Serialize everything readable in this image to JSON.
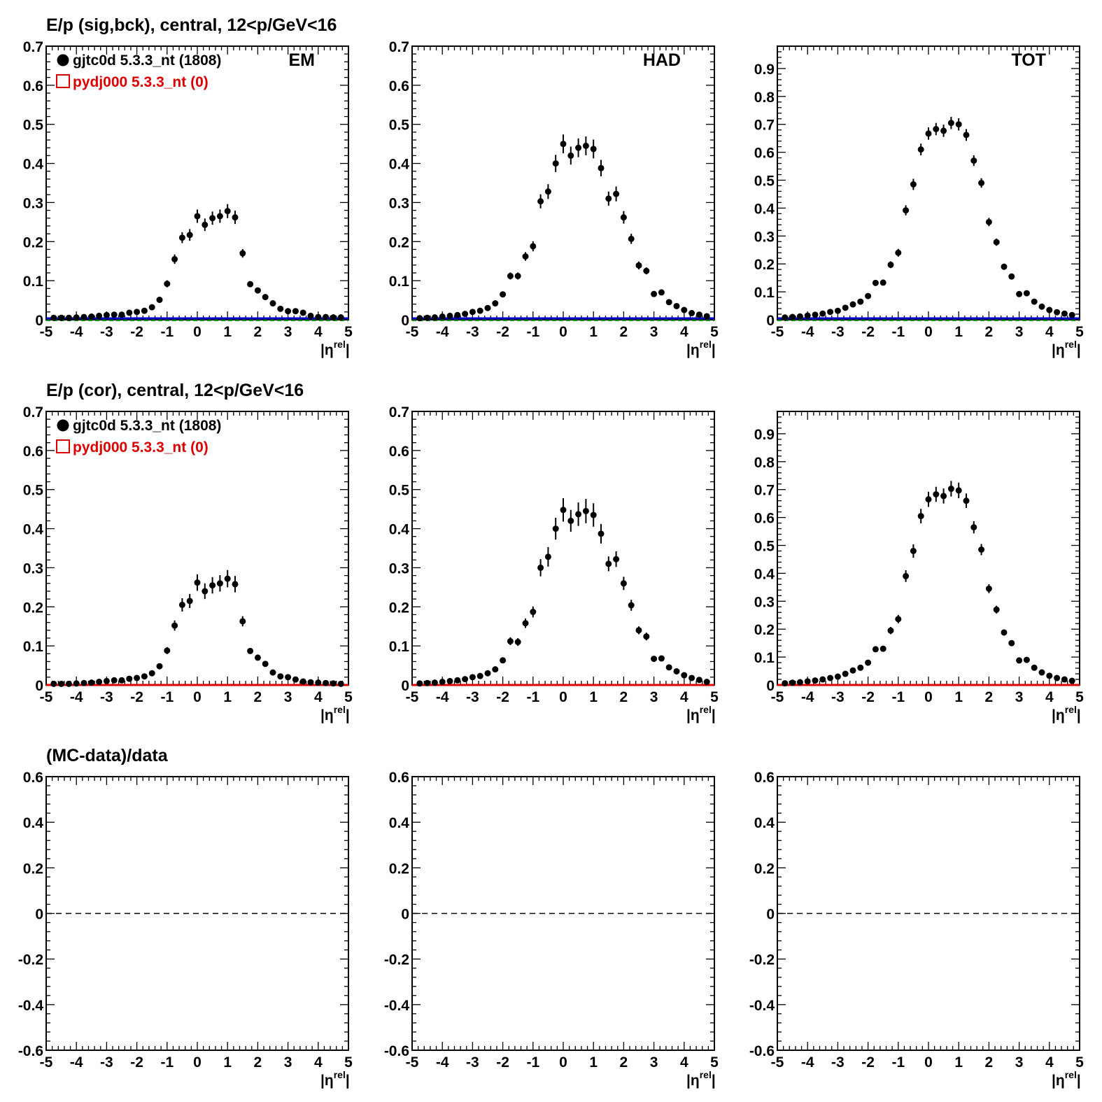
{
  "colors": {
    "data": "#000000",
    "mc": "#dd0000",
    "baseline_blue": "#0000cc",
    "baseline_green": "#009900",
    "frame": "#000000"
  },
  "rows": [
    {
      "title": "E/p (sig,bck), central, 12<p/GeV<16"
    },
    {
      "title": "E/p (cor), central, 12<p/GeV<16"
    },
    {
      "title": "(MC-data)/data"
    }
  ],
  "legend": {
    "data_label": "gjtc0d 5.3.3_nt (1808)",
    "mc_label": "pydj000 5.3.3_nt (0)",
    "data_marker": "filled-circle",
    "mc_marker": "open-square"
  },
  "chart_data": [
    {
      "type": "scatter",
      "row": 0,
      "col": 0,
      "label": "EM",
      "xlabel": "|η^rel|",
      "xlim": [
        -5,
        5
      ],
      "ylim": [
        0,
        0.7
      ],
      "xticks": [
        "-5",
        "-4",
        "-3",
        "-2",
        "-1",
        "0",
        "1",
        "2",
        "3",
        "4",
        "5"
      ],
      "yticks": [
        "0",
        "0.1",
        "0.2",
        "0.3",
        "0.4",
        "0.5",
        "0.6",
        "0.7"
      ],
      "baseline": "blue-green",
      "show_legend": true,
      "series": [
        {
          "name": "gjtc0d 5.3.3_nt (1808)",
          "x": [
            -4.75,
            -4.5,
            -4.25,
            -4,
            -3.75,
            -3.5,
            -3.25,
            -3,
            -2.75,
            -2.5,
            -2.25,
            -2,
            -1.75,
            -1.5,
            -1.25,
            -1,
            -0.75,
            -0.5,
            -0.25,
            0,
            0.25,
            0.5,
            0.75,
            1,
            1.25,
            1.5,
            1.75,
            2,
            2.25,
            2.5,
            2.75,
            3,
            3.25,
            3.5,
            3.75,
            4,
            4.25,
            4.5,
            4.75
          ],
          "y": [
            0.005,
            0.005,
            0.005,
            0.006,
            0.007,
            0.008,
            0.01,
            0.012,
            0.013,
            0.013,
            0.018,
            0.02,
            0.023,
            0.032,
            0.051,
            0.092,
            0.155,
            0.21,
            0.217,
            0.265,
            0.243,
            0.26,
            0.265,
            0.278,
            0.262,
            0.17,
            0.091,
            0.075,
            0.058,
            0.042,
            0.028,
            0.022,
            0.022,
            0.018,
            0.01,
            0.007,
            0.007,
            0.006,
            0.006
          ],
          "err": [
            0.001,
            0.001,
            0.001,
            0.001,
            0.002,
            0.002,
            0.003,
            0.003,
            0.003,
            0.003,
            0.004,
            0.004,
            0.004,
            0.005,
            0.006,
            0.009,
            0.012,
            0.014,
            0.015,
            0.017,
            0.016,
            0.017,
            0.017,
            0.018,
            0.017,
            0.011,
            0.007,
            0.006,
            0.005,
            0.004,
            0.003,
            0.003,
            0.003,
            0.003,
            0.002,
            0.002,
            0.002,
            0.001,
            0.001
          ]
        }
      ]
    },
    {
      "type": "scatter",
      "row": 0,
      "col": 1,
      "label": "HAD",
      "xlabel": "|η^rel|",
      "xlim": [
        -5,
        5
      ],
      "ylim": [
        0,
        0.7
      ],
      "xticks": [
        "-5",
        "-4",
        "-3",
        "-2",
        "-1",
        "0",
        "1",
        "2",
        "3",
        "4",
        "5"
      ],
      "yticks": [
        "0",
        "0.1",
        "0.2",
        "0.3",
        "0.4",
        "0.5",
        "0.6",
        "0.7"
      ],
      "baseline": "blue-green",
      "show_legend": false,
      "series": [
        {
          "name": "gjtc0d 5.3.3_nt (1808)",
          "x": [
            -4.75,
            -4.5,
            -4.25,
            -4,
            -3.75,
            -3.5,
            -3.25,
            -3,
            -2.75,
            -2.5,
            -2.25,
            -2,
            -1.75,
            -1.5,
            -1.25,
            -1,
            -0.75,
            -0.5,
            -0.25,
            0,
            0.25,
            0.5,
            0.75,
            1,
            1.25,
            1.5,
            1.75,
            2,
            2.25,
            2.5,
            2.75,
            3,
            3.25,
            3.5,
            3.75,
            4,
            4.25,
            4.5,
            4.75
          ],
          "y": [
            0.004,
            0.005,
            0.006,
            0.008,
            0.01,
            0.012,
            0.015,
            0.02,
            0.023,
            0.03,
            0.042,
            0.065,
            0.112,
            0.112,
            0.162,
            0.188,
            0.303,
            0.328,
            0.4,
            0.45,
            0.42,
            0.44,
            0.445,
            0.437,
            0.388,
            0.31,
            0.322,
            0.262,
            0.207,
            0.139,
            0.125,
            0.066,
            0.07,
            0.045,
            0.035,
            0.025,
            0.017,
            0.013,
            0.009
          ],
          "err": [
            0.001,
            0.001,
            0.001,
            0.002,
            0.002,
            0.002,
            0.003,
            0.003,
            0.004,
            0.004,
            0.005,
            0.006,
            0.009,
            0.009,
            0.011,
            0.013,
            0.018,
            0.019,
            0.022,
            0.024,
            0.023,
            0.024,
            0.024,
            0.024,
            0.021,
            0.018,
            0.019,
            0.016,
            0.013,
            0.01,
            0.009,
            0.006,
            0.006,
            0.005,
            0.004,
            0.003,
            0.003,
            0.002,
            0.002
          ]
        }
      ]
    },
    {
      "type": "scatter",
      "row": 0,
      "col": 2,
      "label": "TOT",
      "xlabel": "|η^rel|",
      "xlim": [
        -5,
        5
      ],
      "ylim": [
        0,
        0.98
      ],
      "xticks": [
        "-5",
        "-4",
        "-3",
        "-2",
        "-1",
        "0",
        "1",
        "2",
        "3",
        "4",
        "5"
      ],
      "yticks": [
        "0",
        "0.1",
        "0.2",
        "0.3",
        "0.4",
        "0.5",
        "0.6",
        "0.7",
        "0.8",
        "0.9"
      ],
      "baseline": "blue-green",
      "show_legend": false,
      "series": [
        {
          "name": "gjtc0d 5.3.3_nt (1808)",
          "x": [
            -4.75,
            -4.5,
            -4.25,
            -4,
            -3.75,
            -3.5,
            -3.25,
            -3,
            -2.75,
            -2.5,
            -2.25,
            -2,
            -1.75,
            -1.5,
            -1.25,
            -1,
            -0.75,
            -0.5,
            -0.25,
            0,
            0.25,
            0.5,
            0.75,
            1,
            1.25,
            1.5,
            1.75,
            2,
            2.25,
            2.5,
            2.75,
            3,
            3.25,
            3.5,
            3.75,
            4,
            4.25,
            4.5,
            4.75
          ],
          "y": [
            0.008,
            0.01,
            0.012,
            0.015,
            0.018,
            0.022,
            0.028,
            0.032,
            0.043,
            0.055,
            0.065,
            0.085,
            0.132,
            0.133,
            0.197,
            0.24,
            0.392,
            0.485,
            0.61,
            0.667,
            0.683,
            0.677,
            0.705,
            0.7,
            0.662,
            0.57,
            0.49,
            0.35,
            0.278,
            0.19,
            0.155,
            0.092,
            0.095,
            0.065,
            0.047,
            0.035,
            0.027,
            0.022,
            0.017
          ],
          "err": [
            0.002,
            0.002,
            0.002,
            0.003,
            0.003,
            0.003,
            0.004,
            0.004,
            0.005,
            0.005,
            0.006,
            0.007,
            0.009,
            0.009,
            0.012,
            0.014,
            0.018,
            0.02,
            0.021,
            0.022,
            0.022,
            0.022,
            0.022,
            0.022,
            0.021,
            0.019,
            0.017,
            0.015,
            0.013,
            0.011,
            0.01,
            0.008,
            0.008,
            0.006,
            0.005,
            0.004,
            0.004,
            0.003,
            0.003
          ]
        }
      ]
    },
    {
      "type": "scatter",
      "row": 1,
      "col": 0,
      "xlabel": "|η^rel|",
      "xlim": [
        -5,
        5
      ],
      "ylim": [
        0,
        0.7
      ],
      "xticks": [
        "-5",
        "-4",
        "-3",
        "-2",
        "-1",
        "0",
        "1",
        "2",
        "3",
        "4",
        "5"
      ],
      "yticks": [
        "0",
        "0.1",
        "0.2",
        "0.3",
        "0.4",
        "0.5",
        "0.6",
        "0.7"
      ],
      "baseline": "red",
      "show_legend": true,
      "series": [
        {
          "name": "gjtc0d 5.3.3_nt (1808)",
          "x": [
            -4.75,
            -4.5,
            -4.25,
            -4,
            -3.75,
            -3.5,
            -3.25,
            -3,
            -2.75,
            -2.5,
            -2.25,
            -2,
            -1.75,
            -1.5,
            -1.25,
            -1,
            -0.75,
            -0.5,
            -0.25,
            0,
            0.25,
            0.5,
            0.75,
            1,
            1.25,
            1.5,
            1.75,
            2,
            2.25,
            2.5,
            2.75,
            3,
            3.25,
            3.5,
            3.75,
            4,
            4.25,
            4.5,
            4.75
          ],
          "y": [
            0.003,
            0.003,
            0.003,
            0.004,
            0.005,
            0.006,
            0.008,
            0.01,
            0.012,
            0.012,
            0.016,
            0.018,
            0.022,
            0.03,
            0.048,
            0.088,
            0.152,
            0.205,
            0.215,
            0.262,
            0.24,
            0.255,
            0.26,
            0.272,
            0.258,
            0.163,
            0.087,
            0.07,
            0.054,
            0.032,
            0.022,
            0.02,
            0.014,
            0.009,
            0.007,
            0.006,
            0.005,
            0.004,
            0.003
          ],
          "err": [
            0.001,
            0.001,
            0.001,
            0.001,
            0.002,
            0.002,
            0.003,
            0.003,
            0.003,
            0.003,
            0.004,
            0.004,
            0.004,
            0.005,
            0.006,
            0.009,
            0.013,
            0.017,
            0.018,
            0.021,
            0.02,
            0.021,
            0.021,
            0.022,
            0.021,
            0.013,
            0.007,
            0.006,
            0.005,
            0.004,
            0.003,
            0.003,
            0.003,
            0.002,
            0.002,
            0.002,
            0.002,
            0.001,
            0.001
          ]
        }
      ]
    },
    {
      "type": "scatter",
      "row": 1,
      "col": 1,
      "xlabel": "|η^rel|",
      "xlim": [
        -5,
        5
      ],
      "ylim": [
        0,
        0.7
      ],
      "xticks": [
        "-5",
        "-4",
        "-3",
        "-2",
        "-1",
        "0",
        "1",
        "2",
        "3",
        "4",
        "5"
      ],
      "yticks": [
        "0",
        "0.1",
        "0.2",
        "0.3",
        "0.4",
        "0.5",
        "0.6",
        "0.7"
      ],
      "baseline": "red",
      "show_legend": false,
      "series": [
        {
          "name": "gjtc0d 5.3.3_nt (1808)",
          "x": [
            -4.75,
            -4.5,
            -4.25,
            -4,
            -3.75,
            -3.5,
            -3.25,
            -3,
            -2.75,
            -2.5,
            -2.25,
            -2,
            -1.75,
            -1.5,
            -1.25,
            -1,
            -0.75,
            -0.5,
            -0.25,
            0,
            0.25,
            0.5,
            0.75,
            1,
            1.25,
            1.5,
            1.75,
            2,
            2.25,
            2.5,
            2.75,
            3,
            3.25,
            3.5,
            3.75,
            4,
            4.25,
            4.5,
            4.75
          ],
          "y": [
            0.004,
            0.005,
            0.006,
            0.008,
            0.01,
            0.012,
            0.015,
            0.02,
            0.023,
            0.03,
            0.04,
            0.063,
            0.112,
            0.11,
            0.158,
            0.187,
            0.3,
            0.328,
            0.4,
            0.448,
            0.42,
            0.437,
            0.445,
            0.435,
            0.387,
            0.31,
            0.322,
            0.26,
            0.204,
            0.14,
            0.124,
            0.067,
            0.068,
            0.045,
            0.035,
            0.025,
            0.018,
            0.013,
            0.008
          ],
          "err": [
            0.001,
            0.001,
            0.001,
            0.002,
            0.002,
            0.002,
            0.003,
            0.003,
            0.004,
            0.004,
            0.005,
            0.006,
            0.01,
            0.01,
            0.012,
            0.014,
            0.022,
            0.025,
            0.028,
            0.03,
            0.028,
            0.03,
            0.031,
            0.03,
            0.025,
            0.019,
            0.02,
            0.017,
            0.014,
            0.01,
            0.01,
            0.006,
            0.006,
            0.005,
            0.004,
            0.003,
            0.003,
            0.002,
            0.002
          ]
        }
      ]
    },
    {
      "type": "scatter",
      "row": 1,
      "col": 2,
      "xlabel": "|η^rel|",
      "xlim": [
        -5,
        5
      ],
      "ylim": [
        0,
        0.98
      ],
      "xticks": [
        "-5",
        "-4",
        "-3",
        "-2",
        "-1",
        "0",
        "1",
        "2",
        "3",
        "4",
        "5"
      ],
      "yticks": [
        "0",
        "0.1",
        "0.2",
        "0.3",
        "0.4",
        "0.5",
        "0.6",
        "0.7",
        "0.8",
        "0.9"
      ],
      "baseline": "red",
      "show_legend": false,
      "series": [
        {
          "name": "gjtc0d 5.3.3_nt (1808)",
          "x": [
            -4.75,
            -4.5,
            -4.25,
            -4,
            -3.75,
            -3.5,
            -3.25,
            -3,
            -2.75,
            -2.5,
            -2.25,
            -2,
            -1.75,
            -1.5,
            -1.25,
            -1,
            -0.75,
            -0.5,
            -0.25,
            0,
            0.25,
            0.5,
            0.75,
            1,
            1.25,
            1.5,
            1.75,
            2,
            2.25,
            2.5,
            2.75,
            3,
            3.25,
            3.5,
            3.75,
            4,
            4.25,
            4.5,
            4.75
          ],
          "y": [
            0.006,
            0.008,
            0.01,
            0.013,
            0.016,
            0.02,
            0.025,
            0.03,
            0.04,
            0.052,
            0.062,
            0.08,
            0.128,
            0.13,
            0.195,
            0.236,
            0.39,
            0.48,
            0.605,
            0.665,
            0.683,
            0.677,
            0.703,
            0.697,
            0.66,
            0.565,
            0.485,
            0.345,
            0.27,
            0.188,
            0.15,
            0.088,
            0.09,
            0.062,
            0.045,
            0.033,
            0.025,
            0.02,
            0.015
          ],
          "err": [
            0.002,
            0.002,
            0.002,
            0.003,
            0.003,
            0.003,
            0.004,
            0.004,
            0.005,
            0.005,
            0.006,
            0.007,
            0.01,
            0.01,
            0.013,
            0.015,
            0.021,
            0.024,
            0.026,
            0.027,
            0.027,
            0.027,
            0.028,
            0.028,
            0.026,
            0.022,
            0.02,
            0.016,
            0.014,
            0.011,
            0.01,
            0.008,
            0.008,
            0.006,
            0.005,
            0.004,
            0.004,
            0.003,
            0.003
          ]
        }
      ]
    },
    {
      "type": "scatter",
      "row": 2,
      "col": 0,
      "xlabel": "|η^rel|",
      "xlim": [
        -5,
        5
      ],
      "ylim": [
        -0.6,
        0.6
      ],
      "xticks": [
        "-5",
        "-4",
        "-3",
        "-2",
        "-1",
        "0",
        "1",
        "2",
        "3",
        "4",
        "5"
      ],
      "yticks": [
        "-0.6",
        "-0.4",
        "-0.2",
        "0",
        "0.2",
        "0.4",
        "0.6"
      ],
      "baseline": "dashed-zero",
      "show_legend": false,
      "series": []
    },
    {
      "type": "scatter",
      "row": 2,
      "col": 1,
      "xlabel": "|η^rel|",
      "xlim": [
        -5,
        5
      ],
      "ylim": [
        -0.6,
        0.6
      ],
      "xticks": [
        "-5",
        "-4",
        "-3",
        "-2",
        "-1",
        "0",
        "1",
        "2",
        "3",
        "4",
        "5"
      ],
      "yticks": [
        "-0.6",
        "-0.4",
        "-0.2",
        "0",
        "0.2",
        "0.4",
        "0.6"
      ],
      "baseline": "dashed-zero",
      "show_legend": false,
      "series": []
    },
    {
      "type": "scatter",
      "row": 2,
      "col": 2,
      "xlabel": "|η^rel|",
      "xlim": [
        -5,
        5
      ],
      "ylim": [
        -0.6,
        0.6
      ],
      "xticks": [
        "-5",
        "-4",
        "-3",
        "-2",
        "-1",
        "0",
        "1",
        "2",
        "3",
        "4",
        "5"
      ],
      "yticks": [
        "-0.6",
        "-0.4",
        "-0.2",
        "0",
        "0.2",
        "0.4",
        "0.6"
      ],
      "baseline": "dashed-zero",
      "show_legend": false,
      "series": []
    }
  ]
}
